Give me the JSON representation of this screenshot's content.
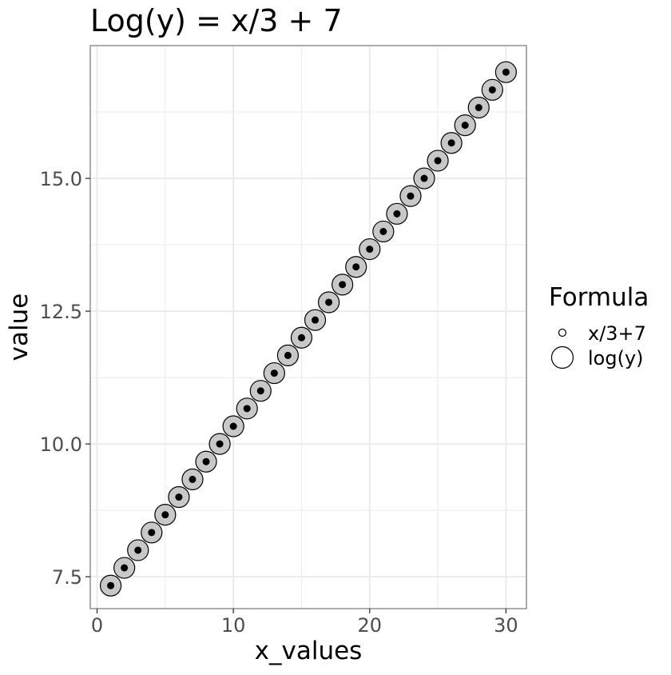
{
  "chart_data": {
    "type": "scatter",
    "title": "Log(y) = x/3 + 7",
    "xlabel": "x_values",
    "ylabel": "value",
    "xlim": [
      -0.5,
      31.5
    ],
    "ylim": [
      6.9,
      17.5
    ],
    "x_ticks": [
      0,
      10,
      20,
      30
    ],
    "y_ticks": [
      7.5,
      10.0,
      12.5,
      15.0
    ],
    "x_tick_labels": [
      "0",
      "10",
      "20",
      "30"
    ],
    "y_tick_labels": [
      "7.5",
      "10.0",
      "12.5",
      "15.0"
    ],
    "grid": true,
    "legend": {
      "title": "Formula",
      "position": "right",
      "entries": [
        "x/3+7",
        "log(y)"
      ]
    },
    "x": [
      1,
      2,
      3,
      4,
      5,
      6,
      7,
      8,
      9,
      10,
      11,
      12,
      13,
      14,
      15,
      16,
      17,
      18,
      19,
      20,
      21,
      22,
      23,
      24,
      25,
      26,
      27,
      28,
      29,
      30
    ],
    "series": [
      {
        "name": "x/3+7",
        "marker": "small-black-dot",
        "values": [
          7.333,
          7.667,
          8.0,
          8.333,
          8.667,
          9.0,
          9.333,
          9.667,
          10.0,
          10.333,
          10.667,
          11.0,
          11.333,
          11.667,
          12.0,
          12.333,
          12.667,
          13.0,
          13.333,
          13.667,
          14.0,
          14.333,
          14.667,
          15.0,
          15.333,
          15.667,
          16.0,
          16.333,
          16.667,
          17.0
        ]
      },
      {
        "name": "log(y)",
        "marker": "large-gray-circle",
        "values": [
          7.333,
          7.667,
          8.0,
          8.333,
          8.667,
          9.0,
          9.333,
          9.667,
          10.0,
          10.333,
          10.667,
          11.0,
          11.333,
          11.667,
          12.0,
          12.333,
          12.667,
          13.0,
          13.333,
          13.667,
          14.0,
          14.333,
          14.667,
          15.0,
          15.333,
          15.667,
          16.0,
          16.333,
          16.667,
          17.0
        ]
      }
    ],
    "colors": {
      "large_fill": "#c8c8c8",
      "marker_stroke": "#000000",
      "small_fill": "#000000",
      "grid": "#ebebeb",
      "panel_border": "#7f7f7f"
    }
  }
}
